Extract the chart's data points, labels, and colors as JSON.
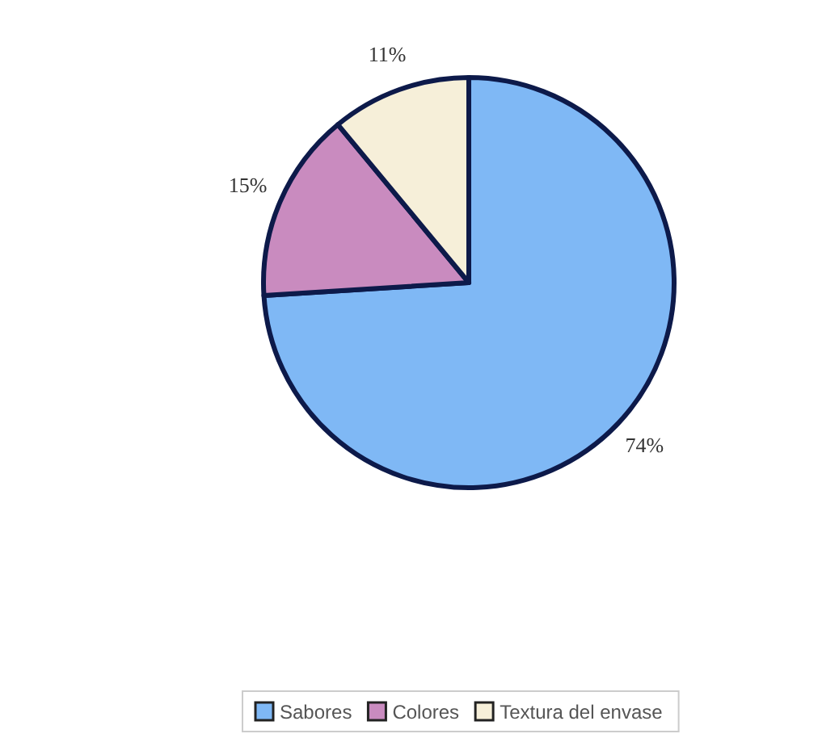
{
  "chart_data": {
    "type": "pie",
    "categories": [
      "Sabores",
      "Colores",
      "Textura del envase"
    ],
    "values": [
      74,
      15,
      11
    ],
    "value_labels": [
      "74%",
      "15%",
      "11%"
    ],
    "colors": [
      "#7fb8f5",
      "#c98bbf",
      "#f6efd9"
    ],
    "legend": "bottom"
  }
}
